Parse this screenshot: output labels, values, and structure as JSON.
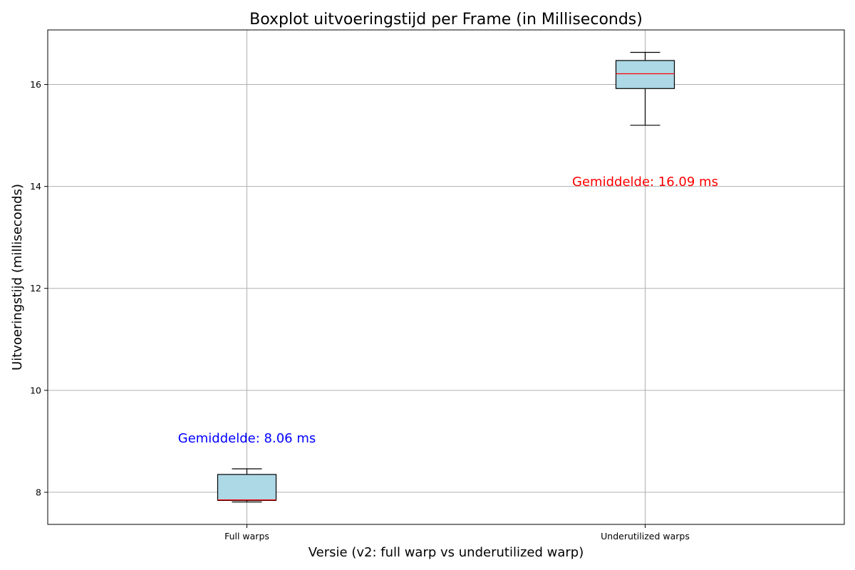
{
  "chart_data": {
    "type": "boxplot",
    "title": "Boxplot uitvoeringstijd per Frame (in Milliseconds)",
    "xlabel": "Versie (v2: full warp vs underutilized warp)",
    "ylabel": "Uitvoeringstijd (milliseconds)",
    "ylim": [
      7.37,
      17.07
    ],
    "yticks": [
      8,
      10,
      12,
      14,
      16
    ],
    "grid": true,
    "box_color": "#add8e6",
    "median_color": "#ff0000",
    "categories": [
      "Full warps",
      "Underutilized warps"
    ],
    "boxes": [
      {
        "label": "Full warps",
        "whislo": 7.81,
        "q1": 7.84,
        "med": 7.85,
        "q3": 8.35,
        "whishi": 8.46
      },
      {
        "label": "Underutilized warps",
        "whislo": 15.2,
        "q1": 15.92,
        "med": 16.21,
        "q3": 16.47,
        "whishi": 16.63
      }
    ],
    "annotations": [
      {
        "text": "Gemiddelde: 8.06 ms",
        "category": "Full warps",
        "y": 9.06,
        "color": "#0000ff"
      },
      {
        "text": "Gemiddelde: 16.09 ms",
        "category": "Underutilized warps",
        "y": 14.09,
        "color": "#ff0000"
      }
    ]
  }
}
